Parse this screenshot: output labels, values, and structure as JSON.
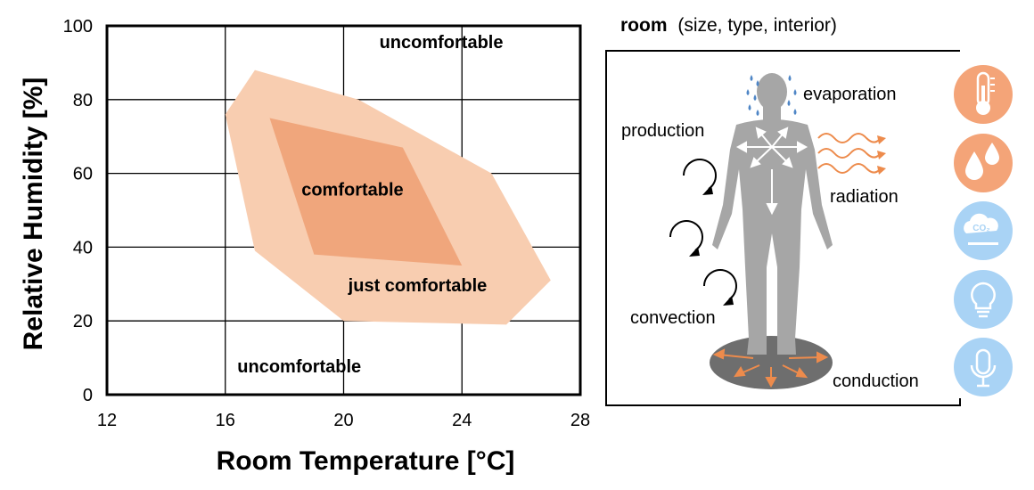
{
  "chart_data": {
    "type": "area",
    "xlabel": "Room Temperature [°C]",
    "ylabel": "Relative Humidity [%]",
    "xlim": [
      12,
      28
    ],
    "ylim": [
      0,
      100
    ],
    "x_ticks": [
      "12",
      "16",
      "20",
      "24",
      "28"
    ],
    "y_ticks": [
      "0",
      "20",
      "40",
      "60",
      "80",
      "100"
    ],
    "grid": true,
    "regions": [
      {
        "label": "just comfortable",
        "color": "#f8cdb0",
        "points": [
          [
            16,
            76
          ],
          [
            17,
            88
          ],
          [
            20.5,
            80
          ],
          [
            25,
            60
          ],
          [
            27,
            31
          ],
          [
            25.5,
            19
          ],
          [
            20,
            20
          ],
          [
            17,
            39
          ]
        ]
      },
      {
        "label": "comfortable",
        "color": "#f0a67c",
        "points": [
          [
            17.5,
            75
          ],
          [
            22,
            67
          ],
          [
            24,
            35
          ],
          [
            19,
            38
          ]
        ]
      }
    ],
    "annotations": [
      {
        "text": "uncomfortable",
        "x": 23.3,
        "y": 94
      },
      {
        "text": "comfortable",
        "x": 20.3,
        "y": 54
      },
      {
        "text": "just comfortable",
        "x": 22.5,
        "y": 28
      },
      {
        "text": "uncomfortable",
        "x": 18.5,
        "y": 6
      }
    ]
  },
  "room": {
    "title_bold": "room",
    "title_rest": "(size, type, interior)",
    "processes": {
      "evaporation": "evaporation",
      "production": "production",
      "radiation": "radiation",
      "convection": "convection",
      "conduction": "conduction"
    },
    "co2_label": "CO₂",
    "icons": [
      {
        "name": "thermometer-icon",
        "color": "#f4a478"
      },
      {
        "name": "humidity-drops-icon",
        "color": "#f4a478"
      },
      {
        "name": "co2-icon",
        "color": "#a9d3f5"
      },
      {
        "name": "light-bulb-icon",
        "color": "#a9d3f5"
      },
      {
        "name": "microphone-icon",
        "color": "#a9d3f5"
      }
    ],
    "colors": {
      "body": "#a6a6a6",
      "floor": "#6e6e6e",
      "heat": "#ed8b4c",
      "sweat": "#4f86c6"
    }
  }
}
